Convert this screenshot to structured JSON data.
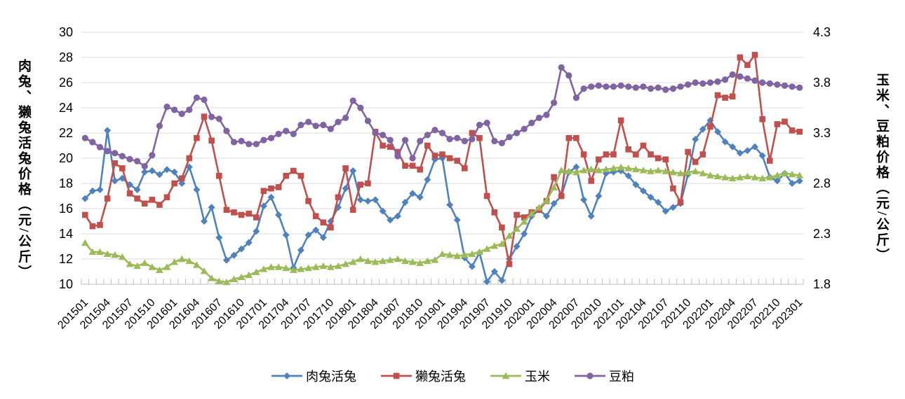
{
  "chart_data": {
    "type": "line",
    "title": "",
    "background": "#FFFFFF",
    "grid": {
      "color": "#D9D9D9",
      "horizontal": true,
      "vertical": false
    },
    "axis_color": "#BFBFBF",
    "text_color": "#000000",
    "legend_position": "bottom",
    "x_label_interval": 3,
    "x": [
      "201501",
      "201502",
      "201503",
      "201504",
      "201505",
      "201506",
      "201507",
      "201508",
      "201509",
      "201510",
      "201511",
      "201512",
      "201601",
      "201602",
      "201603",
      "201604",
      "201605",
      "201606",
      "201607",
      "201608",
      "201609",
      "201610",
      "201611",
      "201612",
      "201701",
      "201702",
      "201703",
      "201704",
      "201705",
      "201706",
      "201707",
      "201708",
      "201709",
      "201710",
      "201711",
      "201712",
      "201801",
      "201802",
      "201803",
      "201804",
      "201805",
      "201806",
      "201807",
      "201808",
      "201809",
      "201810",
      "201811",
      "201812",
      "201901",
      "201902",
      "201903",
      "201904",
      "201905",
      "201906",
      "201907",
      "201908",
      "201909",
      "201910",
      "201911",
      "201912",
      "202001",
      "202002",
      "202003",
      "202004",
      "202005",
      "202006",
      "202007",
      "202008",
      "202009",
      "202010",
      "202011",
      "202012",
      "202101",
      "202102",
      "202103",
      "202104",
      "202105",
      "202106",
      "202107",
      "202108",
      "202109",
      "202110",
      "202111",
      "202112",
      "202201",
      "202202",
      "202203",
      "202204",
      "202205",
      "202206",
      "202207",
      "202208",
      "202209",
      "202210",
      "202211",
      "202212",
      "202301"
    ],
    "y_left": {
      "title": "肉兔、獭兔活兔价格（元/公斤）",
      "min": 10,
      "max": 30,
      "ticks": [
        "30",
        "28",
        "26",
        "24",
        "22",
        "20",
        "18",
        "16",
        "14",
        "12",
        "10"
      ]
    },
    "y_right": {
      "title": "玉米、豆粕价格（元/公斤）",
      "min": 1.8,
      "max": 4.3,
      "ticks": [
        "4.3",
        "3.8",
        "3.3",
        "2.8",
        "2.3",
        "1.8"
      ]
    },
    "series": [
      {
        "name": "肉兔活兔",
        "axis": "left",
        "marker": "diamond",
        "color": "#4F81BD",
        "values": [
          16.8,
          17.4,
          17.5,
          22.2,
          18.2,
          18.4,
          17.9,
          17.5,
          18.9,
          19.0,
          18.7,
          19.1,
          18.9,
          18.0,
          19.3,
          17.5,
          15.0,
          16.1,
          13.7,
          11.9,
          12.3,
          12.8,
          13.3,
          14.2,
          16.2,
          16.9,
          15.5,
          13.9,
          11.3,
          12.7,
          13.9,
          14.3,
          13.7,
          15.0,
          16.1,
          17.6,
          19.0,
          16.7,
          16.6,
          16.7,
          15.8,
          15.1,
          15.4,
          16.5,
          17.2,
          16.9,
          18.3,
          19.9,
          20.0,
          16.3,
          15.1,
          12.1,
          11.4,
          12.5,
          10.2,
          11.0,
          10.3,
          12.0,
          13.0,
          14.0,
          15.4,
          15.9,
          15.4,
          16.4,
          17.0,
          18.9,
          19.3,
          16.7,
          15.4,
          17.0,
          18.8,
          18.9,
          19.0,
          18.6,
          17.9,
          17.4,
          16.9,
          16.5,
          15.8,
          16.1,
          16.4,
          18.7,
          21.5,
          22.3,
          23.0,
          22.1,
          21.3,
          20.9,
          20.4,
          20.6,
          20.9,
          20.2,
          18.5,
          18.2,
          18.8,
          18.0,
          18.2
        ]
      },
      {
        "name": "獭兔活兔",
        "axis": "left",
        "marker": "square",
        "color": "#C0504D",
        "values": [
          15.5,
          14.6,
          14.7,
          16.8,
          19.6,
          19.2,
          17.2,
          16.8,
          16.4,
          16.7,
          16.3,
          16.9,
          18.0,
          18.4,
          20.0,
          21.6,
          23.3,
          21.4,
          18.6,
          15.9,
          15.7,
          15.5,
          15.6,
          15.3,
          17.4,
          17.6,
          17.7,
          18.6,
          19.0,
          18.6,
          16.6,
          15.4,
          14.9,
          14.5,
          16.9,
          19.2,
          15.9,
          17.9,
          18.0,
          22.1,
          21.0,
          20.9,
          20.5,
          19.4,
          19.4,
          19.1,
          21.0,
          20.2,
          20.3,
          20.0,
          19.8,
          19.2,
          22.0,
          21.6,
          17.0,
          15.7,
          14.5,
          11.6,
          15.5,
          15.3,
          15.7,
          15.9,
          16.6,
          18.5,
          17.0,
          21.6,
          21.6,
          20.3,
          18.2,
          19.9,
          20.3,
          20.3,
          23.0,
          20.7,
          20.3,
          21.0,
          20.3,
          20.0,
          19.9,
          17.6,
          16.5,
          20.5,
          19.7,
          20.3,
          22.5,
          25.0,
          24.8,
          24.9,
          28.0,
          27.4,
          28.2,
          23.1,
          19.8,
          22.7,
          22.9,
          22.2,
          22.1
        ]
      },
      {
        "name": "玉米",
        "axis": "right",
        "marker": "triangle",
        "color": "#9BBB59",
        "values": [
          2.21,
          2.12,
          2.12,
          2.1,
          2.09,
          2.07,
          2.0,
          1.98,
          2.01,
          1.97,
          1.94,
          1.97,
          2.02,
          2.05,
          2.03,
          1.99,
          1.93,
          1.86,
          1.83,
          1.82,
          1.85,
          1.87,
          1.89,
          1.92,
          1.95,
          1.97,
          1.97,
          1.96,
          1.94,
          1.95,
          1.96,
          1.97,
          1.98,
          1.97,
          1.98,
          2.0,
          2.02,
          2.05,
          2.03,
          2.02,
          2.03,
          2.04,
          2.05,
          2.03,
          2.02,
          2.01,
          2.03,
          2.04,
          2.1,
          2.09,
          2.08,
          2.09,
          2.1,
          2.12,
          2.15,
          2.18,
          2.2,
          2.28,
          2.35,
          2.42,
          2.5,
          2.56,
          2.63,
          2.76,
          2.93,
          2.92,
          2.91,
          2.93,
          2.94,
          2.93,
          2.94,
          2.95,
          2.96,
          2.95,
          2.94,
          2.93,
          2.92,
          2.93,
          2.92,
          2.91,
          2.9,
          2.91,
          2.92,
          2.9,
          2.88,
          2.87,
          2.86,
          2.85,
          2.86,
          2.87,
          2.86,
          2.85,
          2.86,
          2.88,
          2.9,
          2.89,
          2.88
        ]
      },
      {
        "name": "豆粕",
        "axis": "right",
        "marker": "circle",
        "color": "#8064A2",
        "values": [
          3.25,
          3.21,
          3.16,
          3.12,
          3.1,
          3.07,
          3.04,
          3.02,
          2.97,
          3.08,
          3.37,
          3.56,
          3.53,
          3.49,
          3.53,
          3.65,
          3.63,
          3.46,
          3.44,
          3.32,
          3.21,
          3.22,
          3.19,
          3.19,
          3.23,
          3.25,
          3.29,
          3.32,
          3.29,
          3.38,
          3.41,
          3.37,
          3.38,
          3.34,
          3.41,
          3.45,
          3.62,
          3.55,
          3.42,
          3.3,
          3.28,
          3.23,
          3.07,
          3.23,
          3.05,
          3.22,
          3.28,
          3.33,
          3.3,
          3.24,
          3.25,
          3.22,
          3.24,
          3.38,
          3.4,
          3.22,
          3.2,
          3.26,
          3.3,
          3.34,
          3.4,
          3.45,
          3.48,
          3.6,
          3.95,
          3.87,
          3.65,
          3.74,
          3.76,
          3.77,
          3.76,
          3.76,
          3.77,
          3.76,
          3.75,
          3.76,
          3.74,
          3.75,
          3.73,
          3.74,
          3.76,
          3.78,
          3.8,
          3.79,
          3.8,
          3.81,
          3.83,
          3.88,
          3.86,
          3.84,
          3.82,
          3.8,
          3.79,
          3.78,
          3.77,
          3.76,
          3.75
        ]
      }
    ]
  }
}
